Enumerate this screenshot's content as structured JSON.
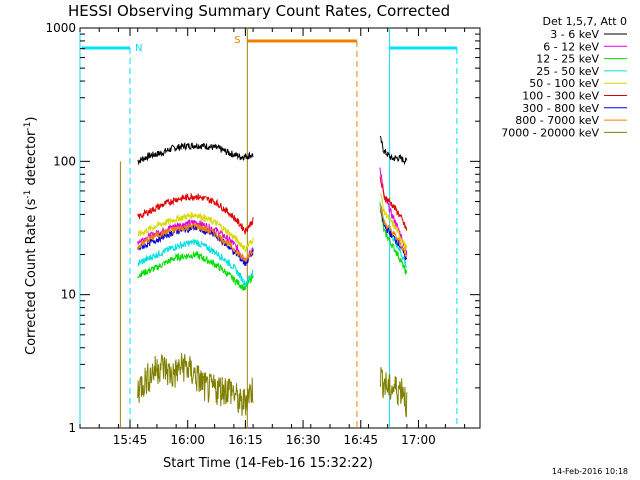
{
  "chart_data": {
    "type": "line",
    "title": "HESSI Observing Summary Count Rates, Corrected",
    "xlabel": "Start Time (14-Feb-16 15:32:22)",
    "ylabel_main": "Corrected Count Rate (s",
    "ylabel_sup1": "-1",
    "ylabel_mid": " detector",
    "ylabel_sup2": "-1",
    "ylabel_end": ")",
    "yscale": "log",
    "ylim": [
      1,
      1000
    ],
    "xlim_minutes_after_1532": [
      0,
      104
    ],
    "xticks": [
      {
        "label": "15:45",
        "t": 13
      },
      {
        "label": "16:00",
        "t": 28
      },
      {
        "label": "16:15",
        "t": 43
      },
      {
        "label": "16:30",
        "t": 58
      },
      {
        "label": "16:45",
        "t": 73
      },
      {
        "label": "17:00",
        "t": 88
      }
    ],
    "yticks": [
      {
        "label": "1",
        "v": 1
      },
      {
        "label": "10",
        "v": 10
      },
      {
        "label": "100",
        "v": 100
      },
      {
        "label": "1000",
        "v": 1000
      }
    ],
    "legend_title": "Det 1,5,7, Att 0",
    "legend_position": "top-right",
    "series": [
      {
        "name": "3 - 6 keV",
        "color": "#000000",
        "seg1": [
          [
            15,
            100
          ],
          [
            18,
            110
          ],
          [
            21,
            115
          ],
          [
            24,
            125
          ],
          [
            27,
            130
          ],
          [
            30,
            132
          ],
          [
            33,
            130
          ],
          [
            36,
            125
          ],
          [
            39,
            115
          ],
          [
            42,
            108
          ],
          [
            45,
            112
          ]
        ],
        "seg2": [
          [
            78,
            150
          ],
          [
            79,
            120
          ],
          [
            81,
            105
          ],
          [
            83,
            106
          ],
          [
            85,
            100
          ]
        ]
      },
      {
        "name": "6 - 12 keV",
        "color": "#e000e0",
        "seg1": [
          [
            15,
            25
          ],
          [
            20,
            29
          ],
          [
            25,
            33
          ],
          [
            30,
            35
          ],
          [
            35,
            31
          ],
          [
            40,
            24
          ],
          [
            43,
            18
          ],
          [
            45,
            22
          ]
        ],
        "seg2": [
          [
            78,
            90
          ],
          [
            79,
            55
          ],
          [
            81,
            40
          ],
          [
            83,
            30
          ],
          [
            85,
            20
          ]
        ]
      },
      {
        "name": "12 - 25 keV",
        "color": "#00dd00",
        "seg1": [
          [
            15,
            14
          ],
          [
            20,
            16
          ],
          [
            25,
            19
          ],
          [
            30,
            20
          ],
          [
            35,
            17
          ],
          [
            40,
            13
          ],
          [
            43,
            11
          ],
          [
            45,
            14
          ]
        ],
        "seg2": [
          [
            78,
            45
          ],
          [
            79,
            30
          ],
          [
            81,
            24
          ],
          [
            83,
            19
          ],
          [
            85,
            14
          ]
        ]
      },
      {
        "name": "25 - 50 keV",
        "color": "#00e0e0",
        "seg1": [
          [
            15,
            17
          ],
          [
            20,
            20
          ],
          [
            25,
            23
          ],
          [
            30,
            25
          ],
          [
            35,
            21
          ],
          [
            40,
            16
          ],
          [
            43,
            12
          ],
          [
            45,
            15
          ]
        ],
        "seg2": [
          [
            78,
            50
          ],
          [
            79,
            35
          ],
          [
            81,
            28
          ],
          [
            83,
            22
          ],
          [
            85,
            16
          ]
        ]
      },
      {
        "name": "50 - 100 keV",
        "color": "#d8d800",
        "seg1": [
          [
            15,
            28
          ],
          [
            20,
            33
          ],
          [
            25,
            37
          ],
          [
            30,
            40
          ],
          [
            35,
            35
          ],
          [
            40,
            27
          ],
          [
            43,
            22
          ],
          [
            45,
            26
          ]
        ],
        "seg2": [
          [
            78,
            60
          ],
          [
            79,
            42
          ],
          [
            81,
            35
          ],
          [
            83,
            28
          ],
          [
            85,
            22
          ]
        ]
      },
      {
        "name": "100 - 300 keV",
        "color": "#e00000",
        "seg1": [
          [
            15,
            38
          ],
          [
            20,
            45
          ],
          [
            25,
            52
          ],
          [
            30,
            55
          ],
          [
            35,
            50
          ],
          [
            40,
            38
          ],
          [
            43,
            30
          ],
          [
            45,
            36
          ]
        ],
        "seg2": [
          [
            78,
            75
          ],
          [
            79,
            55
          ],
          [
            81,
            48
          ],
          [
            83,
            40
          ],
          [
            85,
            30
          ]
        ]
      },
      {
        "name": "300 - 800 keV",
        "color": "#0000e0",
        "seg1": [
          [
            15,
            22
          ],
          [
            20,
            26
          ],
          [
            25,
            30
          ],
          [
            30,
            32
          ],
          [
            35,
            28
          ],
          [
            40,
            21
          ],
          [
            43,
            17
          ],
          [
            45,
            21
          ]
        ],
        "seg2": [
          [
            78,
            45
          ],
          [
            79,
            33
          ],
          [
            81,
            28
          ],
          [
            83,
            24
          ],
          [
            85,
            18
          ]
        ]
      },
      {
        "name": "800 - 7000 keV",
        "color": "#f08000",
        "seg1": [
          [
            15,
            23
          ],
          [
            20,
            28
          ],
          [
            25,
            31
          ],
          [
            30,
            33
          ],
          [
            35,
            29
          ],
          [
            40,
            22
          ],
          [
            43,
            18
          ],
          [
            45,
            22
          ]
        ],
        "seg2": [
          [
            78,
            48
          ],
          [
            79,
            35
          ],
          [
            81,
            30
          ],
          [
            83,
            25
          ],
          [
            85,
            19
          ]
        ]
      },
      {
        "name": "7000 - 20000 keV",
        "color": "#808000",
        "seg1": [
          [
            15,
            2
          ],
          [
            18,
            2.5
          ],
          [
            21,
            3
          ],
          [
            24,
            2.5
          ],
          [
            27,
            3
          ],
          [
            30,
            2.5
          ],
          [
            33,
            2
          ],
          [
            36,
            2
          ],
          [
            39,
            2
          ],
          [
            42,
            1.5
          ],
          [
            45,
            2
          ]
        ],
        "seg2": [
          [
            78,
            2.5
          ],
          [
            80,
            2
          ],
          [
            82,
            2
          ],
          [
            84,
            2
          ],
          [
            85,
            1.5
          ]
        ]
      }
    ],
    "annotations": {
      "night_label": "N",
      "saa_label": "S",
      "footer_date": "14-Feb-2016 10:18"
    }
  }
}
